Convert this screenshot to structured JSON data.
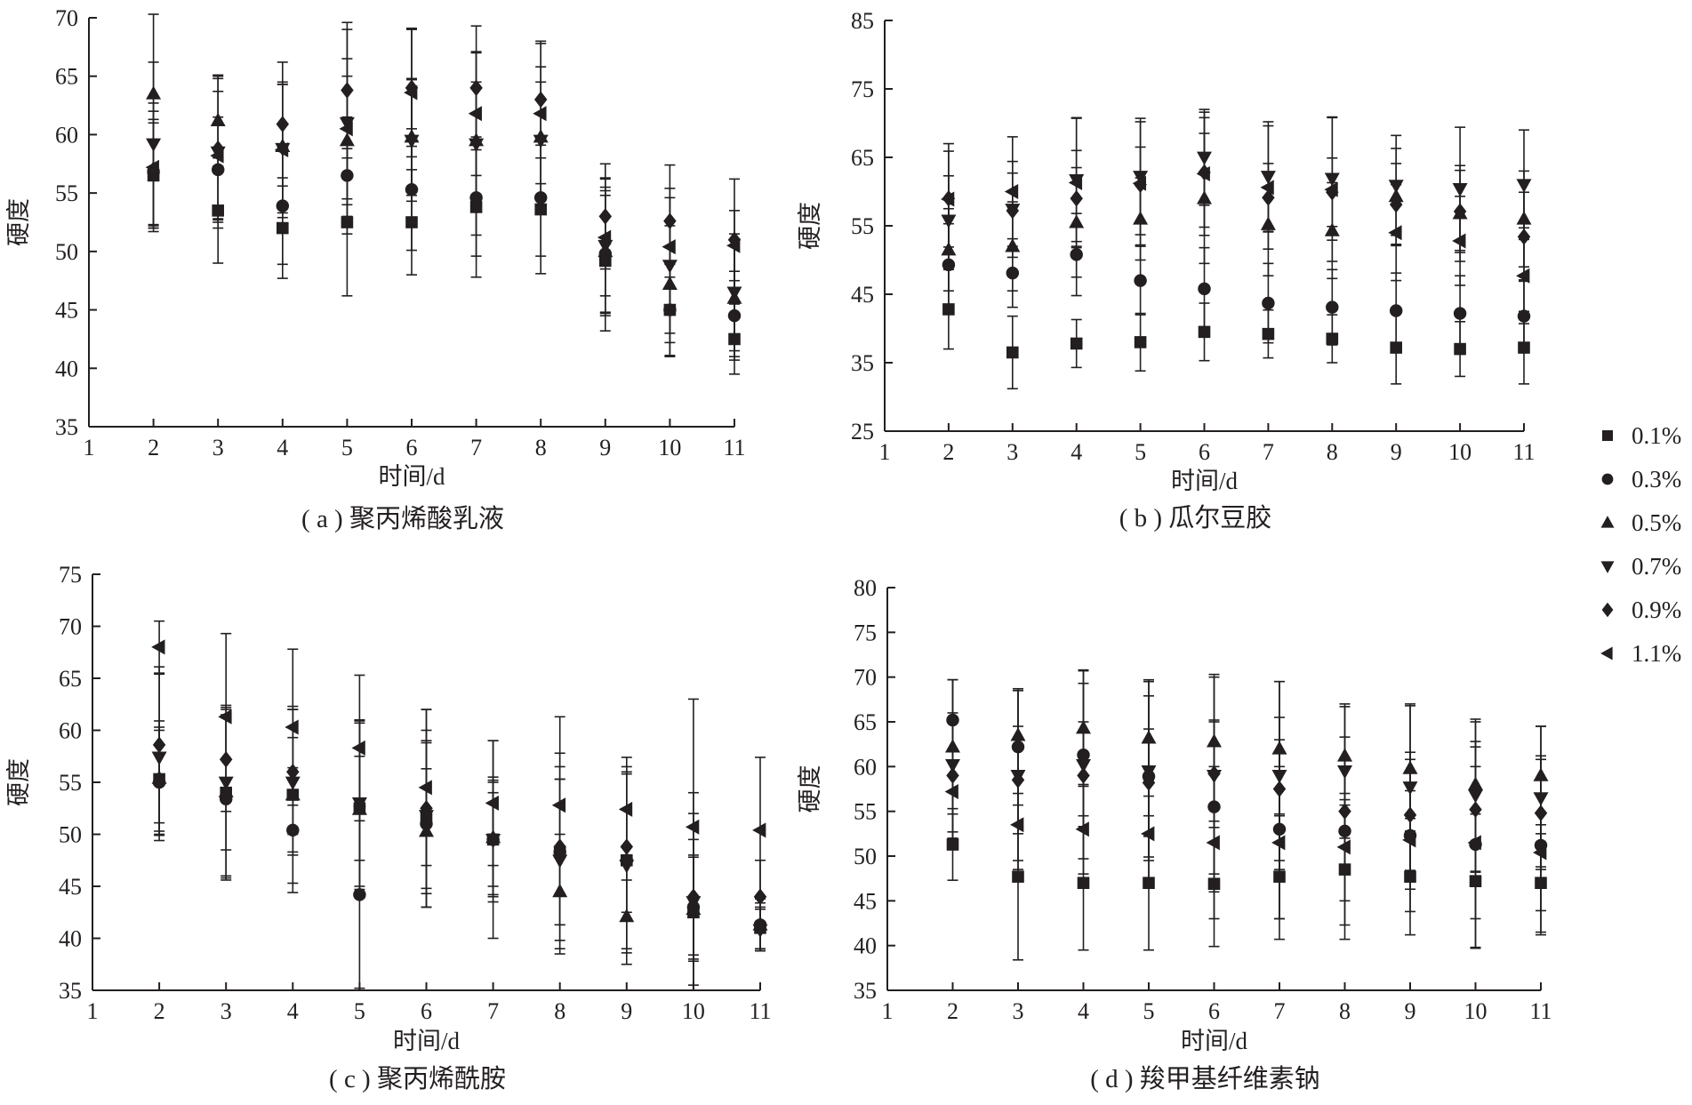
{
  "legend": {
    "entries": [
      {
        "label": "0.1%",
        "marker": "square"
      },
      {
        "label": "0.3%",
        "marker": "circle"
      },
      {
        "label": "0.5%",
        "marker": "triangle-up"
      },
      {
        "label": "0.7%",
        "marker": "triangle-down"
      },
      {
        "label": "0.9%",
        "marker": "diamond"
      },
      {
        "label": "1.1%",
        "marker": "triangle-left"
      }
    ]
  },
  "colors": {
    "ink": "#231f20",
    "background": "#ffffff"
  },
  "chart_data": [
    {
      "type": "scatter",
      "caption": "( a ) 聚丙烯酸乳液",
      "xlabel": "时间/d",
      "ylabel": "硬度",
      "xlim": [
        1,
        11
      ],
      "ylim": [
        35,
        70
      ],
      "xticks": [
        1,
        2,
        3,
        4,
        5,
        6,
        7,
        8,
        9,
        10,
        11
      ],
      "yticks": [
        35,
        40,
        45,
        50,
        55,
        60,
        65,
        70
      ],
      "grid": false,
      "x": [
        2,
        3,
        4,
        5,
        6,
        7,
        8,
        9,
        10,
        11
      ],
      "series": [
        {
          "name": "0.1%",
          "marker": "square",
          "values": [
            56.5,
            53.5,
            52.0,
            52.5,
            52.5,
            53.8,
            53.6,
            49.2,
            45.0,
            42.5
          ],
          "errors": [
            4.5,
            4.5,
            4.3,
            6.3,
            4.5,
            6.0,
            5.5,
            6.0,
            4.0,
            3.0
          ]
        },
        {
          "name": "0.3%",
          "marker": "circle",
          "values": [
            56.8,
            57.0,
            53.9,
            56.5,
            55.3,
            54.6,
            54.6,
            49.8,
            45.0,
            44.5
          ],
          "errors": [
            4.5,
            4.5,
            5.0,
            5.0,
            5.2,
            5.0,
            5.0,
            5.0,
            3.9,
            3.8
          ]
        },
        {
          "name": "0.5%",
          "marker": "triangle-up",
          "values": [
            63.5,
            61.2,
            59.0,
            59.5,
            59.8,
            59.5,
            59.8,
            50.0,
            47.2,
            46.0
          ],
          "errors": [
            6.8,
            3.9,
            5.3,
            5.5,
            5.0,
            5.0,
            6.0,
            5.5,
            5.0,
            5.0
          ]
        },
        {
          "name": "0.7%",
          "marker": "triangle-down",
          "values": [
            59.2,
            58.5,
            58.8,
            61.0,
            59.5,
            59.2,
            59.5,
            50.5,
            48.8,
            46.5
          ],
          "errors": [
            7.0,
            6.5,
            5.5,
            8.0,
            5.2,
            7.8,
            5.0,
            5.8,
            5.8,
            5.0
          ]
        },
        {
          "name": "0.9%",
          "marker": "diamond",
          "values": [
            57.0,
            58.8,
            60.9,
            63.8,
            64.0,
            64.0,
            63.0,
            53.0,
            52.6,
            51.0
          ],
          "errors": [
            5.0,
            6.0,
            5.3,
            5.8,
            5.0,
            5.3,
            5.0,
            4.5,
            4.8,
            5.2
          ]
        },
        {
          "name": "1.1%",
          "marker": "triangle-left",
          "values": [
            57.2,
            58.2,
            58.7,
            60.5,
            63.6,
            61.8,
            61.8,
            51.2,
            50.4,
            50.5
          ],
          "errors": [
            5.5,
            5.5,
            5.8,
            6.0,
            5.5,
            5.3,
            6.0,
            5.0,
            5.0,
            3.0
          ]
        }
      ]
    },
    {
      "type": "scatter",
      "caption": "( b ) 瓜尔豆胶",
      "xlabel": "时间/d",
      "ylabel": "硬度",
      "xlim": [
        1,
        11
      ],
      "ylim": [
        25,
        85
      ],
      "xticks": [
        1,
        2,
        3,
        4,
        5,
        6,
        7,
        8,
        9,
        10,
        11
      ],
      "yticks": [
        25,
        35,
        45,
        55,
        65,
        75,
        85
      ],
      "grid": false,
      "x": [
        2,
        3,
        4,
        5,
        6,
        7,
        8,
        9,
        10,
        11
      ],
      "series": [
        {
          "name": "0.1%",
          "marker": "square",
          "values": [
            42.8,
            36.5,
            37.8,
            38.0,
            39.5,
            39.2,
            38.5,
            37.2,
            37.0,
            37.2
          ],
          "errors": [
            5.8,
            5.3,
            3.5,
            4.2,
            4.2,
            3.5,
            3.5,
            5.3,
            4.0,
            5.3
          ]
        },
        {
          "name": "0.3%",
          "marker": "circle",
          "values": [
            49.3,
            48.1,
            50.8,
            47.0,
            45.8,
            43.7,
            43.1,
            42.6,
            42.2,
            41.8
          ],
          "errors": [
            6.0,
            5.0,
            6.0,
            5.0,
            6.0,
            5.8,
            5.5,
            5.5,
            5.5,
            5.3
          ]
        },
        {
          "name": "0.5%",
          "marker": "triangle-up",
          "values": [
            51.5,
            52.0,
            55.5,
            56.0,
            59.0,
            55.2,
            54.3,
            59.3,
            56.8,
            56.0
          ],
          "errors": [
            6.0,
            6.5,
            8.0,
            6.0,
            9.5,
            7.5,
            7.0,
            7.0,
            7.0,
            7.0
          ]
        },
        {
          "name": "0.7%",
          "marker": "triangle-down",
          "values": [
            55.8,
            57.4,
            61.7,
            62.2,
            65.0,
            62.2,
            61.9,
            60.9,
            60.4,
            61.0
          ],
          "errors": [
            6.5,
            7.0,
            9.0,
            8.5,
            7.0,
            8.0,
            9.0,
            7.3,
            9.0,
            8.0
          ]
        },
        {
          "name": "0.9%",
          "marker": "diamond",
          "values": [
            59.0,
            57.2,
            59.0,
            61.0,
            62.8,
            59.1,
            59.9,
            58.1,
            57.1,
            53.4
          ],
          "errors": [
            8.0,
            5.5,
            7.0,
            5.5,
            8.0,
            5.0,
            5.0,
            6.0,
            6.0,
            6.5
          ]
        },
        {
          "name": "1.1%",
          "marker": "triangle-left",
          "values": [
            58.9,
            60.0,
            61.3,
            61.2,
            62.6,
            60.6,
            60.3,
            54.0,
            52.8,
            47.7
          ],
          "errors": [
            7.0,
            8.0,
            9.5,
            9.0,
            9.0,
            9.0,
            10.5,
            7.0,
            6.5,
            7.0
          ]
        }
      ]
    },
    {
      "type": "scatter",
      "caption": "( c ) 聚丙烯酰胺",
      "xlabel": "时间/d",
      "ylabel": "硬度",
      "xlim": [
        1,
        11
      ],
      "ylim": [
        35,
        75
      ],
      "xticks": [
        1,
        2,
        3,
        4,
        5,
        6,
        7,
        8,
        9,
        10,
        11
      ],
      "yticks": [
        35,
        40,
        45,
        50,
        55,
        60,
        65,
        70,
        75
      ],
      "grid": false,
      "x": [
        2,
        3,
        4,
        5,
        6,
        7,
        8,
        9,
        10,
        11
      ],
      "series": [
        {
          "name": "0.1%",
          "marker": "square",
          "values": [
            55.3,
            54.0,
            53.8,
            52.5,
            51.5,
            49.5,
            48.3,
            47.5,
            42.5,
            41.0
          ],
          "errors": [
            5.0,
            8.0,
            5.5,
            5.0,
            8.5,
            4.5,
            7.0,
            5.0,
            7.0,
            2.0
          ]
        },
        {
          "name": "0.3%",
          "marker": "circle",
          "values": [
            55.0,
            53.4,
            50.4,
            44.2,
            51.0,
            49.5,
            48.3,
            47.5,
            43.0,
            41.3
          ],
          "errors": [
            5.0,
            7.8,
            6.0,
            9.0,
            8.0,
            6.0,
            7.0,
            8.5,
            5.0,
            2.5
          ]
        },
        {
          "name": "0.5%",
          "marker": "triangle-up",
          "values": [
            55.4,
            54.1,
            53.8,
            52.4,
            50.3,
            49.7,
            44.5,
            42.1,
            42.8,
            41.3
          ],
          "errors": [
            5.5,
            8.3,
            8.5,
            8.5,
            6.0,
            5.5,
            5.5,
            3.5,
            5.0,
            2.5
          ]
        },
        {
          "name": "0.7%",
          "marker": "triangle-down",
          "values": [
            57.4,
            55.0,
            55.0,
            53.0,
            51.8,
            49.5,
            47.5,
            47.0,
            43.5,
            40.8
          ],
          "errors": [
            8.0,
            6.5,
            7.0,
            8.0,
            7.0,
            5.5,
            9.0,
            9.5,
            8.5,
            2.0
          ]
        },
        {
          "name": "0.9%",
          "marker": "diamond",
          "values": [
            58.6,
            57.2,
            56.0,
            52.7,
            52.5,
            49.5,
            48.8,
            48.8,
            44.0,
            44.0
          ],
          "errors": [
            7.5,
            5.0,
            6.0,
            8.0,
            9.5,
            9.5,
            9.0,
            7.0,
            10.0,
            3.5
          ]
        },
        {
          "name": "1.1%",
          "marker": "triangle-left",
          "values": [
            68.0,
            61.3,
            60.3,
            58.3,
            54.5,
            53.0,
            52.8,
            52.4,
            50.7,
            50.4
          ],
          "errors": [
            2.5,
            8.0,
            7.5,
            7.0,
            7.5,
            6.0,
            8.5,
            5.0,
            12.3,
            7.0
          ]
        }
      ]
    },
    {
      "type": "scatter",
      "caption": "( d ) 羧甲基纤维素钠",
      "xlabel": "时间/d",
      "ylabel": "硬度",
      "xlim": [
        1,
        11
      ],
      "ylim": [
        35,
        80
      ],
      "xticks": [
        1,
        2,
        3,
        4,
        5,
        6,
        7,
        8,
        9,
        10,
        11
      ],
      "yticks": [
        35,
        40,
        45,
        50,
        55,
        60,
        65,
        70,
        75,
        80
      ],
      "grid": false,
      "x": [
        2,
        3,
        4,
        5,
        6,
        7,
        8,
        9,
        10,
        11
      ],
      "series": [
        {
          "name": "0.1%",
          "marker": "square",
          "values": [
            51.3,
            47.7,
            47.0,
            47.0,
            46.9,
            47.7,
            48.5,
            47.7,
            47.2,
            47.0
          ],
          "errors": [
            4.0,
            9.3,
            7.5,
            7.5,
            7.0,
            7.0,
            7.8,
            6.5,
            7.5,
            5.5
          ]
        },
        {
          "name": "0.3%",
          "marker": "circle",
          "values": [
            65.2,
            62.2,
            61.3,
            58.9,
            55.5,
            53.0,
            52.8,
            52.3,
            51.3,
            51.2
          ],
          "errors": [
            4.5,
            6.5,
            8.0,
            9.0,
            9.5,
            10.0,
            10.5,
            8.5,
            11.5,
            10.0
          ]
        },
        {
          "name": "0.5%",
          "marker": "triangle-up",
          "values": [
            62.2,
            63.5,
            64.3,
            63.2,
            62.8,
            62.0,
            61.2,
            59.8,
            58.0,
            59.0
          ],
          "errors": [
            7.5,
            5.0,
            6.5,
            6.5,
            7.5,
            7.5,
            5.5,
            7.0,
            7.0,
            5.5
          ]
        },
        {
          "name": "0.7%",
          "marker": "triangle-down",
          "values": [
            60.2,
            59.0,
            60.2,
            59.5,
            59.0,
            59.0,
            59.5,
            57.7,
            56.8,
            56.5
          ],
          "errors": [
            9.5,
            9.5,
            10.5,
            10.0,
            11.0,
            10.5,
            7.5,
            9.3,
            8.5,
            8.0
          ]
        },
        {
          "name": "0.9%",
          "marker": "diamond",
          "values": [
            59.0,
            58.5,
            59.0,
            58.2,
            59.2,
            57.5,
            55.0,
            54.6,
            55.2,
            54.8
          ],
          "errors": [
            7.0,
            6.0,
            6.0,
            6.0,
            6.0,
            8.0,
            6.0,
            7.0,
            7.0,
            6.0
          ]
        },
        {
          "name": "1.1%",
          "marker": "triangle-left",
          "values": [
            57.2,
            53.5,
            53.0,
            52.5,
            51.5,
            51.5,
            51.0,
            51.8,
            51.5,
            50.4
          ],
          "errors": [
            4.5,
            5.0,
            5.0,
            6.0,
            8.5,
            8.5,
            6.0,
            5.5,
            8.5,
            6.5
          ]
        }
      ]
    }
  ]
}
